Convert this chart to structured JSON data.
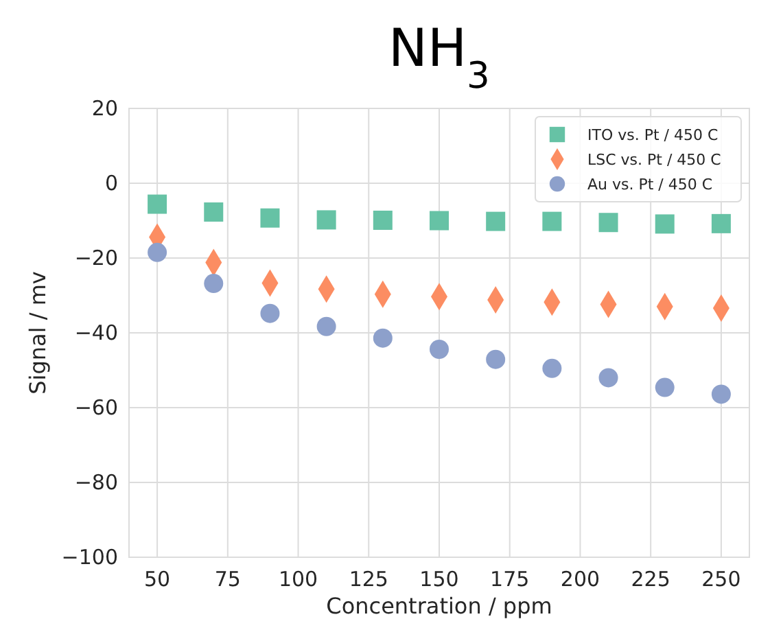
{
  "chart_data": {
    "type": "scatter",
    "title": "NH$_{3}$",
    "xlabel": "Concentration / ppm",
    "ylabel": "Signal / mv",
    "x": [
      50,
      70,
      90,
      110,
      130,
      150,
      170,
      190,
      210,
      230,
      250
    ],
    "series": [
      {
        "name": "ITO vs. Pt / 450 C",
        "color": "#66c2a5",
        "marker": "square",
        "values": [
          -5.6,
          -7.7,
          -9.3,
          -9.8,
          -9.9,
          -10.0,
          -10.2,
          -10.2,
          -10.5,
          -10.9,
          -10.8
        ]
      },
      {
        "name": "LSC vs. Pt / 450 C",
        "color": "#fc8d62",
        "marker": "diamond",
        "values": [
          -14.4,
          -21.2,
          -26.7,
          -28.3,
          -29.7,
          -30.3,
          -31.2,
          -31.8,
          -32.4,
          -33.0,
          -33.4
        ]
      },
      {
        "name": "Au vs. Pt / 450 C",
        "color": "#8da0cb",
        "marker": "circle",
        "values": [
          -18.5,
          -26.8,
          -34.8,
          -38.3,
          -41.4,
          -44.4,
          -47.1,
          -49.5,
          -52.0,
          -54.6,
          -56.4
        ]
      }
    ],
    "xlim": [
      40,
      260
    ],
    "xticks": [
      50,
      75,
      100,
      125,
      150,
      175,
      200,
      225,
      250
    ],
    "ylim": [
      -100,
      20
    ],
    "yticks": [
      -100,
      -80,
      -60,
      -40,
      -20,
      0,
      20
    ],
    "grid": true,
    "legend": "top right"
  }
}
